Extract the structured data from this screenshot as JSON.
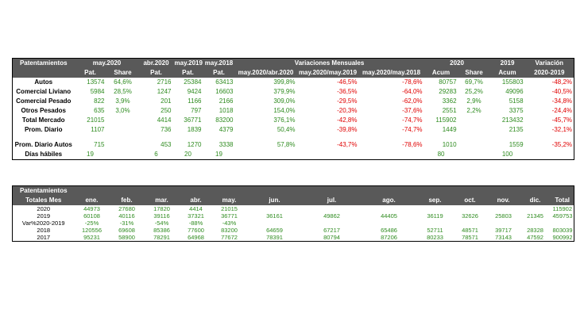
{
  "table1": {
    "header1": [
      "Patentamientos",
      "may.2020",
      "abr.2020",
      "may.2019",
      "may.2018",
      "Variaciones Mensuales",
      "2020",
      "2019",
      "Variación"
    ],
    "header2": [
      "Pat.",
      "Share",
      "Pat.",
      "Pat.",
      "Pat.",
      "may.2020/abr.2020",
      "may.2020/may.2019",
      "may.2020/may.2018",
      "Acum",
      "Share",
      "Acum",
      "2020-2019"
    ],
    "rows": [
      {
        "label": "Autos",
        "cells": [
          "13574",
          "64,6%",
          "2716",
          "25384",
          "63413",
          "399,8%",
          "-46,5%",
          "-78,6%",
          "80757",
          "69,7%",
          "155803",
          "-48,2%"
        ]
      },
      {
        "label": "Comercial Liviano",
        "cells": [
          "5984",
          "28,5%",
          "1247",
          "9424",
          "16603",
          "379,9%",
          "-36,5%",
          "-64,0%",
          "29283",
          "25,2%",
          "49096",
          "-40,5%"
        ]
      },
      {
        "label": "Comercial Pesado",
        "cells": [
          "822",
          "3,9%",
          "201",
          "1166",
          "2166",
          "309,0%",
          "-29,5%",
          "-62,0%",
          "3362",
          "2,9%",
          "5158",
          "-34,8%"
        ]
      },
      {
        "label": "Otros Pesados",
        "cells": [
          "635",
          "3,0%",
          "250",
          "797",
          "1018",
          "154,0%",
          "-20,3%",
          "-37,6%",
          "2551",
          "2,2%",
          "3375",
          "-24,4%"
        ]
      },
      {
        "label": "Total Mercado",
        "cells": [
          "21015",
          "",
          "4414",
          "36771",
          "83200",
          "376,1%",
          "-42,8%",
          "-74,7%",
          "115902",
          "",
          "213432",
          "-45,7%"
        ]
      },
      {
        "label": "Prom. Diario",
        "cells": [
          "1107",
          "",
          "736",
          "1839",
          "4379",
          "50,4%",
          "-39,8%",
          "-74,7%",
          "1449",
          "",
          "2135",
          "-32,1%"
        ]
      },
      {
        "label": "Prom. Diario Autos",
        "cells": [
          "715",
          "",
          "453",
          "1270",
          "3338",
          "57,8%",
          "-43,7%",
          "-78,6%",
          "1010",
          "",
          "1559",
          "-35,2%"
        ]
      },
      {
        "label": "Días hábiles",
        "cells": [
          "19",
          "",
          "6",
          "20",
          "19",
          "",
          "",
          "",
          "80",
          "",
          "100",
          ""
        ]
      }
    ]
  },
  "table2": {
    "title1": "Patentamientos",
    "title2": "Totales Mes",
    "months": [
      "ene.",
      "feb.",
      "mar.",
      "abr.",
      "may.",
      "jun.",
      "jul.",
      "ago.",
      "sep.",
      "oct.",
      "nov.",
      "dic.",
      "Total"
    ],
    "rows": [
      {
        "label": "2020",
        "cells": [
          "44973",
          "27680",
          "17820",
          "4414",
          "21015",
          "",
          "",
          "",
          "",
          "",
          "",
          "",
          "115902"
        ]
      },
      {
        "label": "2019",
        "cells": [
          "60108",
          "40116",
          "39116",
          "37321",
          "36771",
          "36161",
          "49862",
          "44405",
          "36119",
          "32626",
          "25803",
          "21345",
          "459753"
        ]
      },
      {
        "label": "Var%2020-2019",
        "cells": [
          "-25%",
          "-31%",
          "-54%",
          "-88%",
          "-43%",
          "",
          "",
          "",
          "",
          "",
          "",
          "",
          ""
        ]
      },
      {
        "label": "2018",
        "cells": [
          "120556",
          "69608",
          "85386",
          "77600",
          "83200",
          "64659",
          "67217",
          "65486",
          "52711",
          "48571",
          "39717",
          "28328",
          "803039"
        ]
      },
      {
        "label": "2017",
        "cells": [
          "95231",
          "58900",
          "78291",
          "64968",
          "77672",
          "78391",
          "80794",
          "87206",
          "80233",
          "78571",
          "73143",
          "47592",
          "900992"
        ]
      }
    ]
  },
  "colors": {
    "header_bg": "#595959",
    "positive": "#2e8b1f",
    "negative": "#e00000"
  }
}
